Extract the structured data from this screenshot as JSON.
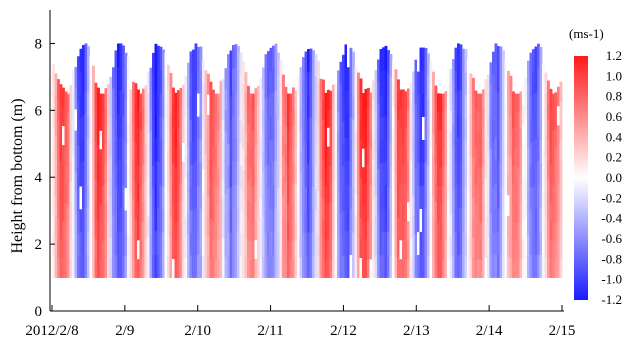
{
  "chart_data": {
    "type": "heatmap",
    "title": "",
    "xlabel": "",
    "ylabel": "Height from bottom (m)",
    "x_start": "2012-02-08",
    "x_end": "2012-02-15",
    "x_tick_labels": [
      "2012/2/8",
      "2/9",
      "2/10",
      "2/11",
      "2/12",
      "2/13",
      "2/14",
      "2/15"
    ],
    "ylim": [
      0,
      9
    ],
    "y_ticks": [
      0,
      2,
      4,
      6,
      8
    ],
    "y_tick_labels": [
      "0",
      "2",
      "4",
      "6",
      "8"
    ],
    "profile_bottom_m": 1.0,
    "colorbar": {
      "unit": "(ms-1)",
      "range": [
        -1.2,
        1.2
      ],
      "tick_labels": [
        "1.2",
        "1.0",
        "0.8",
        "0.6",
        "0.4",
        "0.2",
        "0.0",
        "-0.2",
        "-0.4",
        "-0.6",
        "-0.8",
        "-1.0",
        "-1.2"
      ],
      "positive_color": "#ff1a1a",
      "zero_color": "#ffffff",
      "negative_color": "#1a1aff"
    },
    "velocity_pattern": "semi-diurnal tidal oscillation between approx. -1.2 and +1.2 ms-1, top of profile varying between about 6.5 m and 8 m with tide"
  }
}
